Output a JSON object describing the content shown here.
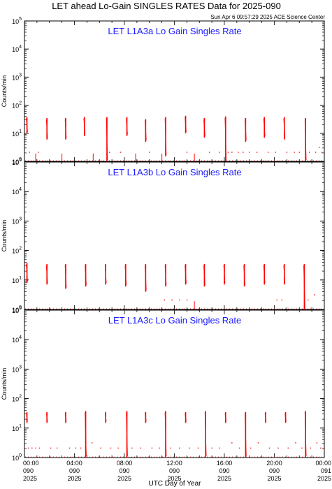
{
  "header": {
    "title": "LET ahead Lo-Gain SINGLES RATES Data for 2025-090",
    "timestamp": "Sun Apr  6 09:57:29 2025 ACE Science Center"
  },
  "colors": {
    "data": "#ff0000",
    "panel_title": "#1a1aff",
    "axes": "#000000"
  },
  "x_axis": {
    "label": "UTC Day of Year",
    "ticks": [
      {
        "time": "00:00",
        "doy": "090",
        "year": "2025",
        "hour": 0
      },
      {
        "time": "04:00",
        "doy": "090",
        "year": "2025",
        "hour": 4
      },
      {
        "time": "08:00",
        "doy": "090",
        "year": "2025",
        "hour": 8
      },
      {
        "time": "12:00",
        "doy": "090",
        "year": "2025",
        "hour": 12
      },
      {
        "time": "16:00",
        "doy": "090",
        "year": "2025",
        "hour": 16
      },
      {
        "time": "20:00",
        "doy": "090",
        "year": "2025",
        "hour": 20
      },
      {
        "time": "00:00",
        "doy": "091",
        "year": "2025",
        "hour": 24
      }
    ]
  },
  "chart_data": [
    {
      "type": "line",
      "title": "LET L1A3a Lo Gain Singles Rate",
      "ylabel": "Counts/min",
      "y_scale": "log",
      "ylim": [
        1,
        100000
      ],
      "xlim_hours": [
        0,
        24
      ],
      "y_tick_labels": [
        "10^0",
        "10^1",
        "10^2",
        "10^3",
        "10^4",
        "10^5"
      ],
      "spikes": [
        {
          "x": 0.2,
          "top": 38,
          "bottom": 10
        },
        {
          "x": 1.8,
          "top": 35,
          "bottom": 6
        },
        {
          "x": 3.3,
          "top": 35,
          "bottom": 6
        },
        {
          "x": 4.8,
          "top": 38,
          "bottom": 8
        },
        {
          "x": 6.6,
          "top": 38,
          "bottom": 1
        },
        {
          "x": 8.2,
          "top": 38,
          "bottom": 8
        },
        {
          "x": 9.7,
          "top": 32,
          "bottom": 5
        },
        {
          "x": 11.3,
          "top": 38,
          "bottom": 1.5
        },
        {
          "x": 12.9,
          "top": 42,
          "bottom": 10
        },
        {
          "x": 14.4,
          "top": 35,
          "bottom": 7
        },
        {
          "x": 16.1,
          "top": 40,
          "bottom": 1
        },
        {
          "x": 17.7,
          "top": 35,
          "bottom": 5
        },
        {
          "x": 19.2,
          "top": 38,
          "bottom": 7
        },
        {
          "x": 20.8,
          "top": 38,
          "bottom": 6
        },
        {
          "x": 22.5,
          "top": 35,
          "bottom": 1
        }
      ],
      "low_points": [
        {
          "x": 0.4,
          "y": 2
        },
        {
          "x": 0.9,
          "y": 1
        },
        {
          "x": 1.1,
          "y": 2
        },
        {
          "x": 3.0,
          "y": 1
        },
        {
          "x": 5.5,
          "y": 1
        },
        {
          "x": 6.8,
          "y": 2
        },
        {
          "x": 7.7,
          "y": 2
        },
        {
          "x": 8.9,
          "y": 1
        },
        {
          "x": 10.0,
          "y": 2
        },
        {
          "x": 11.0,
          "y": 1
        },
        {
          "x": 13.0,
          "y": 2
        },
        {
          "x": 13.6,
          "y": 1
        },
        {
          "x": 14.8,
          "y": 2
        },
        {
          "x": 15.6,
          "y": 2
        },
        {
          "x": 16.3,
          "y": 2
        },
        {
          "x": 16.6,
          "y": 2
        },
        {
          "x": 17.1,
          "y": 2
        },
        {
          "x": 17.5,
          "y": 2
        },
        {
          "x": 18.0,
          "y": 2
        },
        {
          "x": 18.6,
          "y": 2
        },
        {
          "x": 19.5,
          "y": 2
        },
        {
          "x": 20.1,
          "y": 2
        },
        {
          "x": 21.0,
          "y": 2
        },
        {
          "x": 21.6,
          "y": 2
        },
        {
          "x": 22.0,
          "y": 2
        },
        {
          "x": 22.8,
          "y": 2
        },
        {
          "x": 23.3,
          "y": 2
        },
        {
          "x": 23.6,
          "y": 3
        },
        {
          "x": 23.8,
          "y": 2
        }
      ]
    },
    {
      "type": "line",
      "title": "LET L1A3b Lo Gain Singles Rate",
      "ylabel": "Counts/min",
      "y_scale": "log",
      "ylim": [
        1,
        100000
      ],
      "xlim_hours": [
        0,
        24
      ],
      "y_tick_labels": [
        "10^0",
        "10^1",
        "10^2",
        "10^3",
        "10^4",
        "10^5"
      ],
      "spikes": [
        {
          "x": 0.2,
          "top": 38,
          "bottom": 8
        },
        {
          "x": 1.8,
          "top": 35,
          "bottom": 7
        },
        {
          "x": 3.3,
          "top": 35,
          "bottom": 5
        },
        {
          "x": 4.9,
          "top": 35,
          "bottom": 6
        },
        {
          "x": 6.5,
          "top": 35,
          "bottom": 7
        },
        {
          "x": 8.1,
          "top": 35,
          "bottom": 6
        },
        {
          "x": 9.7,
          "top": 35,
          "bottom": 4
        },
        {
          "x": 11.3,
          "top": 35,
          "bottom": 6
        },
        {
          "x": 12.9,
          "top": 35,
          "bottom": 7
        },
        {
          "x": 14.4,
          "top": 35,
          "bottom": 6
        },
        {
          "x": 16.0,
          "top": 35,
          "bottom": 7
        },
        {
          "x": 17.6,
          "top": 35,
          "bottom": 6
        },
        {
          "x": 19.2,
          "top": 35,
          "bottom": 7
        },
        {
          "x": 20.8,
          "top": 35,
          "bottom": 7
        },
        {
          "x": 22.4,
          "top": 35,
          "bottom": 1
        }
      ],
      "low_points": [
        {
          "x": 11.2,
          "y": 2
        },
        {
          "x": 11.8,
          "y": 2
        },
        {
          "x": 12.4,
          "y": 2
        },
        {
          "x": 13.0,
          "y": 2
        },
        {
          "x": 13.6,
          "y": 1
        },
        {
          "x": 20.2,
          "y": 2
        },
        {
          "x": 20.6,
          "y": 2
        },
        {
          "x": 22.7,
          "y": 2
        },
        {
          "x": 23.2,
          "y": 3
        }
      ]
    },
    {
      "type": "line",
      "title": "LET L1A3c Lo Gain Singles Rate",
      "ylabel": "Counts/min",
      "y_scale": "log",
      "ylim": [
        1,
        100000
      ],
      "xlim_hours": [
        0,
        24
      ],
      "y_tick_labels": [
        "10^0",
        "10^1",
        "10^2",
        "10^3",
        "10^4",
        "10^5"
      ],
      "spikes": [
        {
          "x": 0.2,
          "top": 35,
          "bottom": 15
        },
        {
          "x": 1.8,
          "top": 35,
          "bottom": 15
        },
        {
          "x": 3.3,
          "top": 35,
          "bottom": 15
        },
        {
          "x": 4.9,
          "top": 38,
          "bottom": 1
        },
        {
          "x": 6.5,
          "top": 35,
          "bottom": 15
        },
        {
          "x": 8.2,
          "top": 38,
          "bottom": 1
        },
        {
          "x": 9.7,
          "top": 35,
          "bottom": 15
        },
        {
          "x": 11.3,
          "top": 38,
          "bottom": 1
        },
        {
          "x": 12.9,
          "top": 35,
          "bottom": 15
        },
        {
          "x": 14.5,
          "top": 38,
          "bottom": 1
        },
        {
          "x": 16.1,
          "top": 35,
          "bottom": 15
        },
        {
          "x": 17.7,
          "top": 35,
          "bottom": 1
        },
        {
          "x": 19.3,
          "top": 35,
          "bottom": 15
        },
        {
          "x": 20.9,
          "top": 35,
          "bottom": 15
        },
        {
          "x": 22.5,
          "top": 38,
          "bottom": 1
        }
      ],
      "low_points": [
        {
          "x": 0.3,
          "y": 2
        },
        {
          "x": 0.6,
          "y": 2
        },
        {
          "x": 0.9,
          "y": 2
        },
        {
          "x": 1.2,
          "y": 2
        },
        {
          "x": 2.1,
          "y": 2
        },
        {
          "x": 2.6,
          "y": 2
        },
        {
          "x": 3.6,
          "y": 2
        },
        {
          "x": 4.1,
          "y": 2
        },
        {
          "x": 4.5,
          "y": 2
        },
        {
          "x": 5.4,
          "y": 3
        },
        {
          "x": 6.1,
          "y": 2
        },
        {
          "x": 6.9,
          "y": 2
        },
        {
          "x": 7.5,
          "y": 2
        },
        {
          "x": 8.6,
          "y": 2
        },
        {
          "x": 9.3,
          "y": 2
        },
        {
          "x": 10.2,
          "y": 2
        },
        {
          "x": 10.8,
          "y": 2
        },
        {
          "x": 11.7,
          "y": 2
        },
        {
          "x": 12.4,
          "y": 2
        },
        {
          "x": 13.2,
          "y": 2
        },
        {
          "x": 13.9,
          "y": 2
        },
        {
          "x": 15.0,
          "y": 2
        },
        {
          "x": 15.6,
          "y": 2
        },
        {
          "x": 16.6,
          "y": 3
        },
        {
          "x": 17.2,
          "y": 2
        },
        {
          "x": 18.1,
          "y": 2
        },
        {
          "x": 18.7,
          "y": 3
        },
        {
          "x": 19.6,
          "y": 2
        },
        {
          "x": 20.3,
          "y": 2
        },
        {
          "x": 21.1,
          "y": 2
        },
        {
          "x": 21.7,
          "y": 3
        },
        {
          "x": 22.2,
          "y": 2
        },
        {
          "x": 22.9,
          "y": 2
        },
        {
          "x": 23.4,
          "y": 3
        },
        {
          "x": 23.7,
          "y": 2
        }
      ]
    }
  ]
}
